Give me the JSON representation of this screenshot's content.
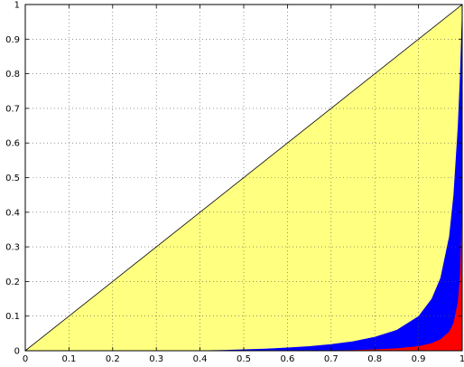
{
  "chart_data": {
    "type": "area",
    "title": "",
    "xlabel": "",
    "ylabel": "",
    "xlim": [
      0,
      1
    ],
    "ylim": [
      0,
      1
    ],
    "grid": true,
    "grid_style": "dotted",
    "x_ticks": [
      "0",
      "0.1",
      "0.2",
      "0.3",
      "0.4",
      "0.5",
      "0.6",
      "0.7",
      "0.8",
      "0.9",
      "1"
    ],
    "y_ticks": [
      "0",
      "0.1",
      "0.2",
      "0.3",
      "0.4",
      "0.5",
      "0.6",
      "0.7",
      "0.8",
      "0.9",
      "1"
    ],
    "series": [
      {
        "color": "#ffff80",
        "x": [
          0,
          1
        ],
        "y": [
          0,
          1
        ]
      },
      {
        "color": "#0000ff",
        "x": [
          0.0,
          0.4,
          0.45,
          0.5,
          0.55,
          0.6,
          0.65,
          0.7,
          0.75,
          0.8,
          0.85,
          0.9,
          0.93,
          0.95,
          0.97,
          0.98,
          0.99,
          0.995,
          1.0
        ],
        "y": [
          0.0,
          0.001,
          0.002,
          0.004,
          0.006,
          0.009,
          0.013,
          0.019,
          0.027,
          0.04,
          0.06,
          0.1,
          0.15,
          0.21,
          0.33,
          0.45,
          0.65,
          0.8,
          1.0
        ]
      },
      {
        "color": "#ff0000",
        "x": [
          0.0,
          0.6,
          0.7,
          0.75,
          0.8,
          0.85,
          0.9,
          0.93,
          0.95,
          0.97,
          0.98,
          0.99,
          0.995,
          1.0
        ],
        "y": [
          0.0,
          0.0005,
          0.001,
          0.002,
          0.004,
          0.007,
          0.013,
          0.022,
          0.033,
          0.055,
          0.08,
          0.14,
          0.22,
          0.42
        ]
      }
    ],
    "diagonal_line": {
      "x": [
        0,
        1
      ],
      "y": [
        0,
        1
      ],
      "color": "#000000"
    }
  }
}
